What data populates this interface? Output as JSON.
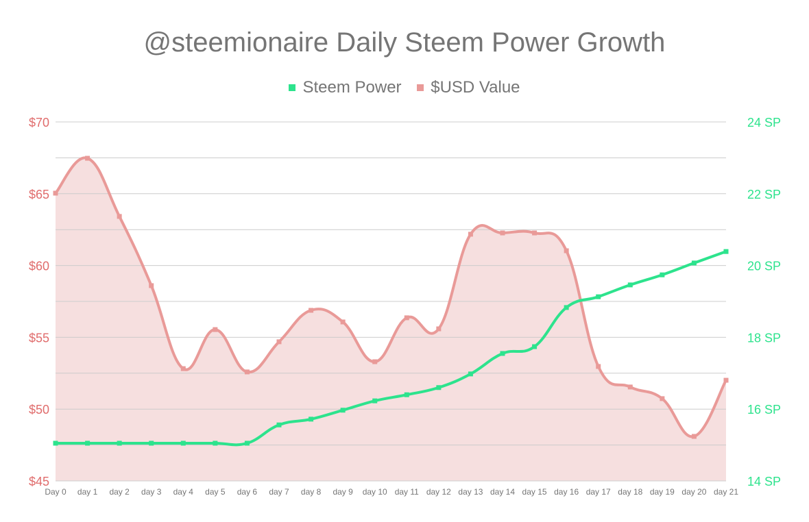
{
  "chart_data": {
    "type": "line",
    "title": "@steemionaire Daily Steem Power Growth",
    "categories": [
      "Day 0",
      "day 1",
      "day 2",
      "day 3",
      "day 4",
      "day 5",
      "day 6",
      "day 7",
      "day 8",
      "day 9",
      "day 10",
      "day 11",
      "day 12",
      "day 13",
      "day 14",
      "day 15",
      "day 16",
      "day 17",
      "day 18",
      "day 19",
      "day 20",
      "day 21"
    ],
    "series": [
      {
        "name": "Steem Power",
        "axis": "right",
        "color": "#2de38d",
        "fill": false,
        "values": [
          15.05,
          15.05,
          15.05,
          15.05,
          15.05,
          15.05,
          15.05,
          15.56,
          15.72,
          15.97,
          16.23,
          16.4,
          16.6,
          16.98,
          17.55,
          17.74,
          18.83,
          19.13,
          19.46,
          19.74,
          20.07,
          20.39
        ]
      },
      {
        "name": "$USD Value",
        "axis": "left",
        "color": "#e99a98",
        "fill": true,
        "fill_color": "#f6dfdf",
        "values": [
          65.04,
          67.47,
          63.42,
          58.6,
          52.82,
          55.54,
          52.59,
          54.69,
          56.88,
          56.07,
          53.3,
          56.36,
          55.59,
          62.18,
          62.27,
          62.27,
          61.03,
          52.97,
          51.54,
          50.73,
          48.1,
          52.01
        ]
      }
    ],
    "left_axis": {
      "ylim": [
        45,
        70
      ],
      "ticks": [
        45,
        50,
        55,
        60,
        65,
        70
      ],
      "tick_labels": [
        "$45",
        "$50",
        "$55",
        "$60",
        "$65",
        "$70"
      ],
      "color": "#e06c6c"
    },
    "right_axis": {
      "ylim": [
        14,
        24
      ],
      "ticks": [
        14,
        16,
        18,
        20,
        22,
        24
      ],
      "tick_labels": [
        "14 SP",
        "16 SP",
        "18 SP",
        "20 SP",
        "22 SP",
        "24 SP"
      ],
      "color": "#2de38d"
    },
    "grid": true,
    "legend_position": "top"
  }
}
